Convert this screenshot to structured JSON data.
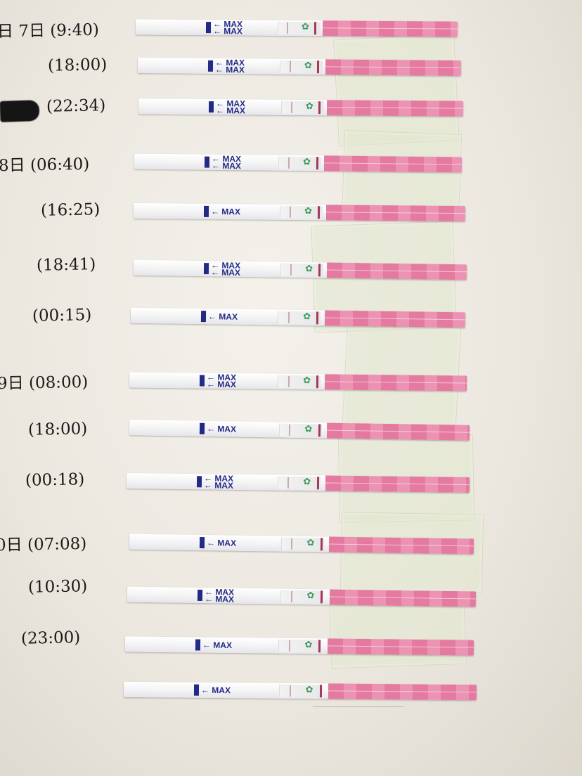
{
  "strip_text": {
    "max": "MAX"
  },
  "labels": [
    {
      "text": "日 7日 (9:40)"
    },
    {
      "text": "(18:00)"
    },
    {
      "text": "(22:34)"
    },
    {
      "text": "8日 (06:40)"
    },
    {
      "text": "(16:25)"
    },
    {
      "text": "(18:41)"
    },
    {
      "text": "(00:15)"
    },
    {
      "text": "9日 (08:00)"
    },
    {
      "text": "(18:00)"
    },
    {
      "text": "(00:18)"
    },
    {
      "text": "0日 (07:08)"
    },
    {
      "text": "(10:30)"
    },
    {
      "text": "(23:00)"
    }
  ],
  "strips": [
    {
      "double_max": true
    },
    {
      "double_max": true
    },
    {
      "double_max": true
    },
    {
      "double_max": true
    },
    {
      "double_max": false
    },
    {
      "double_max": true
    },
    {
      "double_max": false
    },
    {
      "double_max": true
    },
    {
      "double_max": false
    },
    {
      "double_max": true
    },
    {
      "double_max": false
    },
    {
      "double_max": true
    },
    {
      "double_max": false
    },
    {
      "double_max": false
    }
  ],
  "colors": {
    "strip_marker": "#232a86",
    "strip_pink": "#e47aa0",
    "control_line": "#a23a55",
    "flower_icon": "#3b9a5a"
  }
}
